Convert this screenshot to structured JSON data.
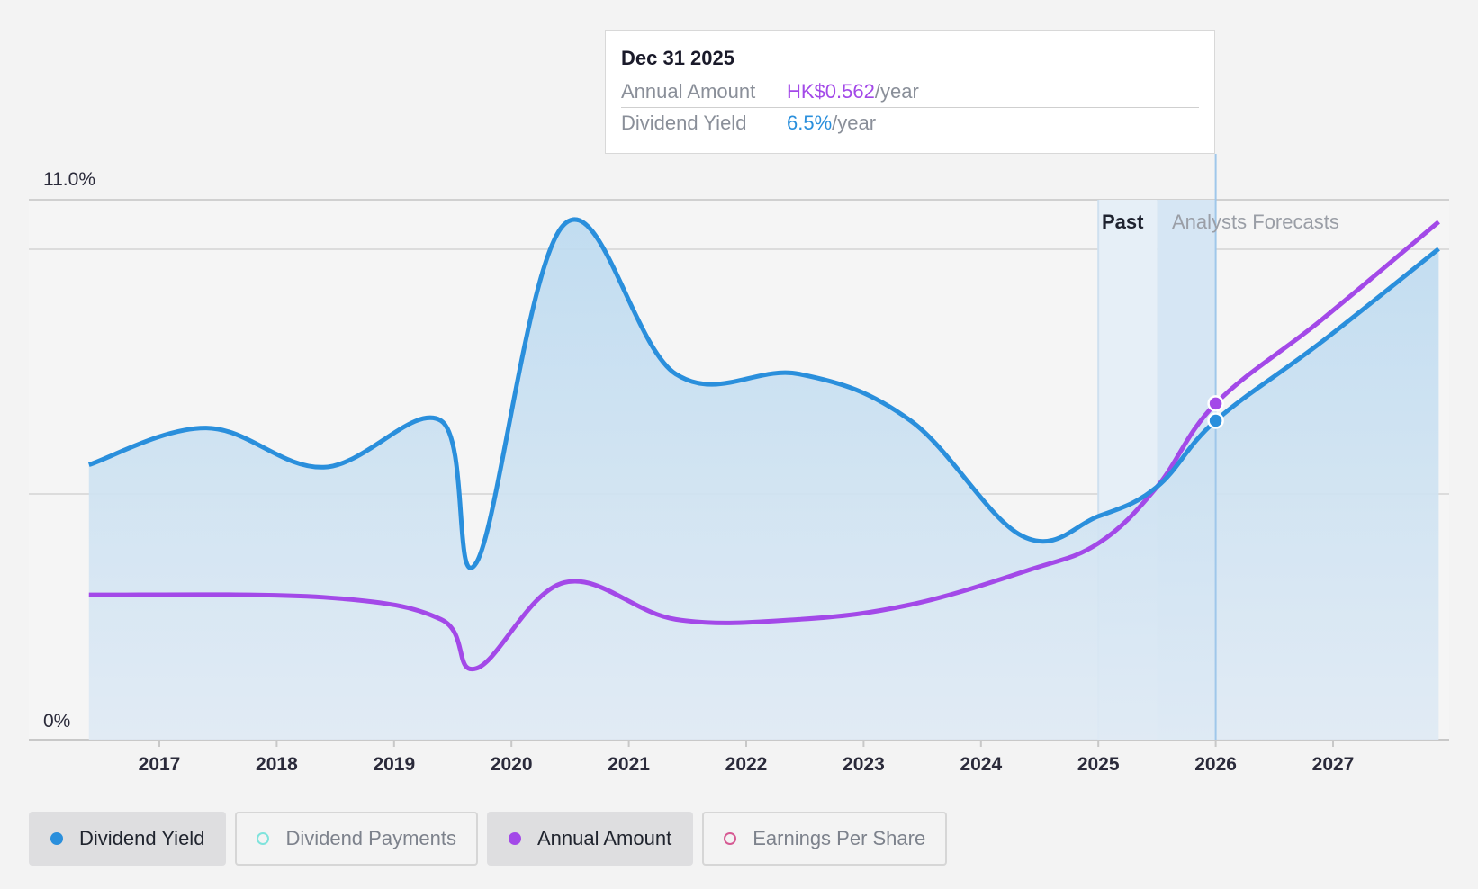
{
  "tooltip": {
    "date": "Dec 31 2025",
    "rows": [
      {
        "label": "Annual Amount",
        "value": "HK$0.562",
        "unit": "/year"
      },
      {
        "label": "Dividend Yield",
        "value": "6.5%",
        "unit": "/year"
      }
    ]
  },
  "regions": {
    "past": "Past",
    "forecast": "Analysts Forecasts"
  },
  "legend": [
    {
      "label": "Dividend Yield",
      "color": "#2a8fdc",
      "active": true,
      "filled": true
    },
    {
      "label": "Dividend Payments",
      "color": "#7fe3dc",
      "active": false,
      "filled": false
    },
    {
      "label": "Annual Amount",
      "color": "#a349e8",
      "active": true,
      "filled": true
    },
    {
      "label": "Earnings Per Share",
      "color": "#d65a93",
      "active": false,
      "filled": false
    }
  ],
  "chart_data": {
    "type": "area",
    "x_ticks": [
      "2017",
      "2018",
      "2019",
      "2020",
      "2021",
      "2022",
      "2023",
      "2024",
      "2025",
      "2026",
      "2027"
    ],
    "y_ticks": [
      "0%",
      "11.0%"
    ],
    "ylim": [
      0,
      11.0
    ],
    "xlim": [
      2016.0,
      2027.9
    ],
    "colors": {
      "yield": "#2a8fdc",
      "annual": "#a349e8"
    },
    "series": [
      {
        "name": "Dividend Yield",
        "unit": "%",
        "points": [
          [
            2016.4,
            5.6
          ],
          [
            2017.4,
            6.35
          ],
          [
            2018.4,
            5.55
          ],
          [
            2019.4,
            6.5
          ],
          [
            2019.7,
            3.6
          ],
          [
            2020.45,
            10.5
          ],
          [
            2021.4,
            7.45
          ],
          [
            2022.45,
            7.45
          ],
          [
            2023.4,
            6.5
          ],
          [
            2024.35,
            4.15
          ],
          [
            2025.0,
            4.55
          ],
          [
            2025.5,
            5.15
          ],
          [
            2026.0,
            6.5
          ],
          [
            2026.9,
            8.1
          ],
          [
            2027.9,
            10.0
          ]
        ]
      },
      {
        "name": "Annual Amount",
        "unit": "HK$",
        "points": [
          [
            2016.4,
            2.95
          ],
          [
            2018.4,
            2.9
          ],
          [
            2019.4,
            2.45
          ],
          [
            2019.7,
            1.45
          ],
          [
            2020.45,
            3.2
          ],
          [
            2021.4,
            2.45
          ],
          [
            2022.45,
            2.45
          ],
          [
            2023.4,
            2.75
          ],
          [
            2024.4,
            3.45
          ],
          [
            2025.0,
            4.0
          ],
          [
            2025.5,
            5.15
          ],
          [
            2026.0,
            6.85
          ],
          [
            2026.9,
            8.55
          ],
          [
            2027.9,
            10.55
          ]
        ]
      }
    ],
    "past_band": [
      2025.0,
      2025.5
    ],
    "forecast_band": [
      2025.5,
      2026.0
    ],
    "highlight_x": 2026.0
  }
}
